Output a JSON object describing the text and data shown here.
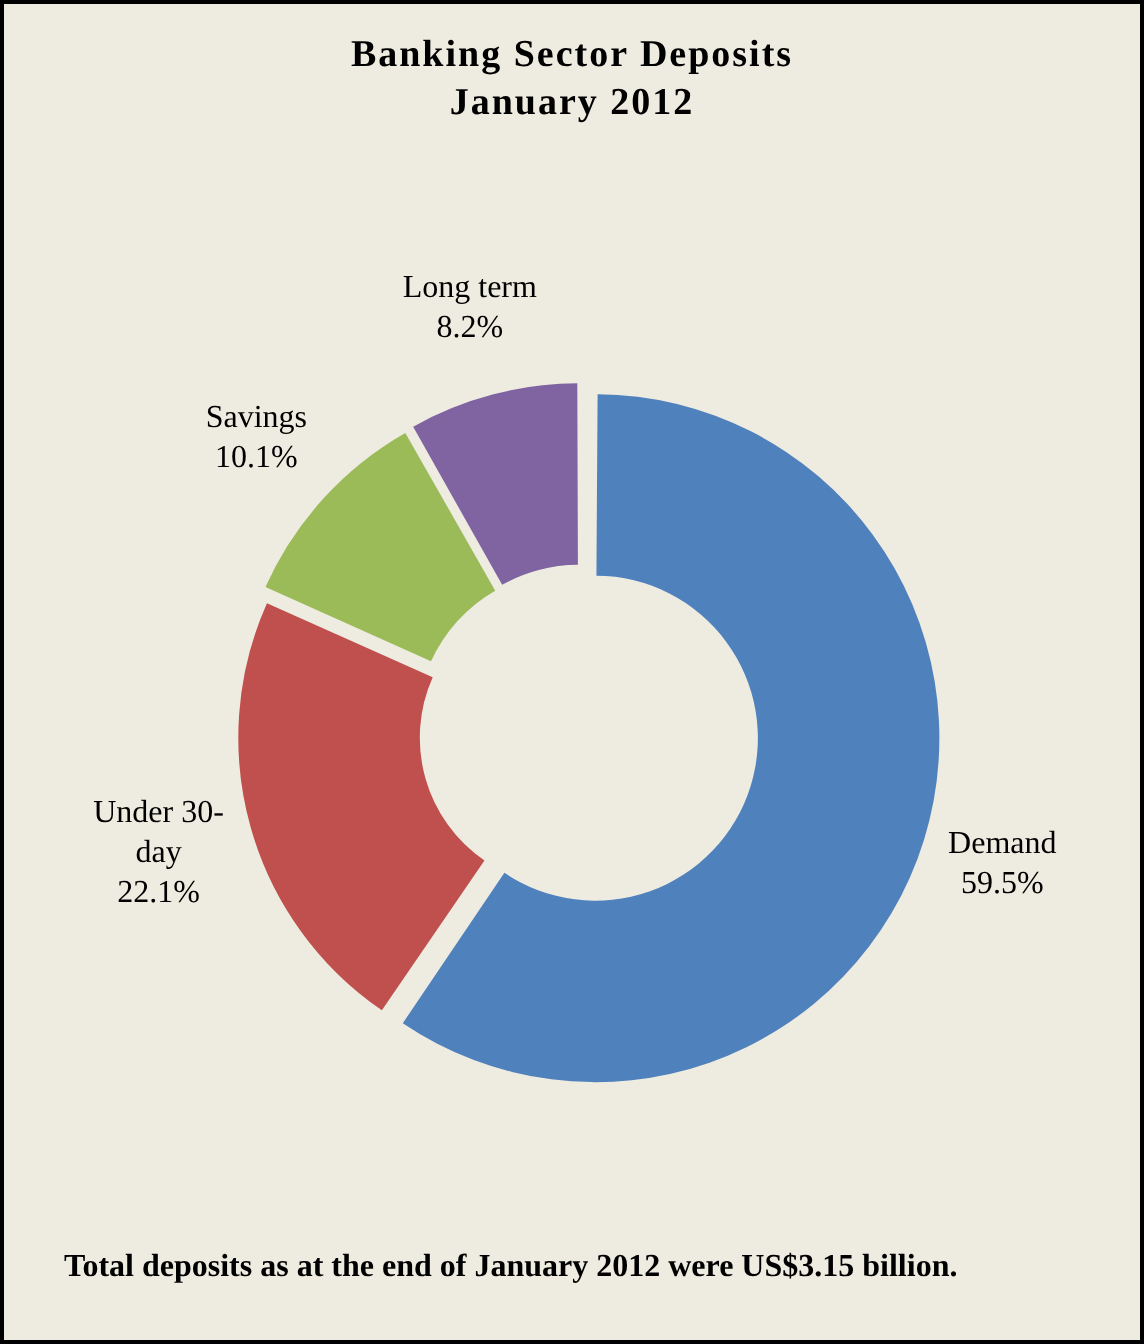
{
  "chart_data": {
    "type": "donut",
    "title": "Banking Sector Deposits\nJanuary 2012",
    "categories": [
      "Demand",
      "Under 30-day",
      "Savings",
      "Long term"
    ],
    "values": [
      59.5,
      22.1,
      10.1,
      8.2
    ],
    "colors": [
      "#4f81bd",
      "#c0504d",
      "#9bbb59",
      "#8064a2"
    ],
    "value_labels": [
      "59.5%",
      "22.1%",
      "10.1%",
      "8.2%"
    ],
    "legend": false,
    "annotations": [
      "Total deposits as at the end of January 2012 were US$3.15 billion."
    ]
  }
}
